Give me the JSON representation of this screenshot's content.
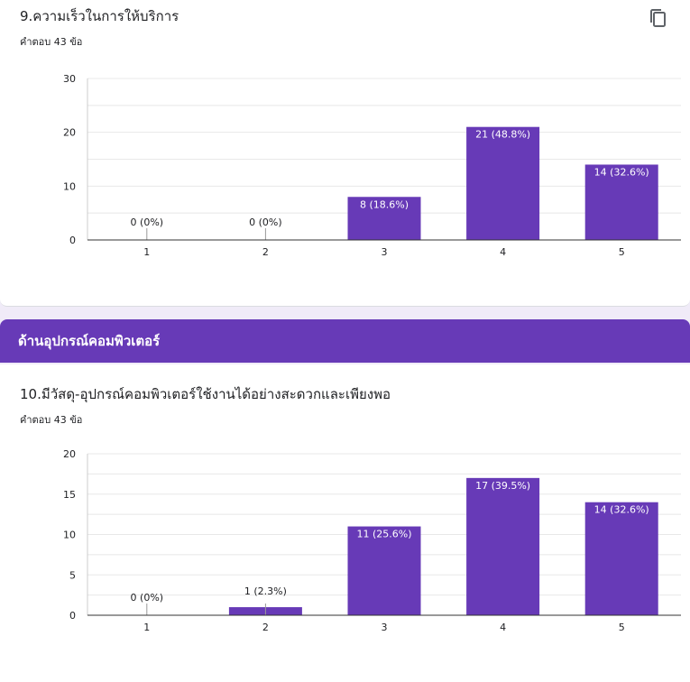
{
  "questions": [
    {
      "title": "9.ความเร็วในการให้บริการ",
      "count_label": "คำตอบ 43 ข้อ"
    },
    {
      "title": "10.มีวัสดุ-อุปกรณ์คอมพิวเตอร์ใช้งานได้อย่างสะดวกและเพียงพอ",
      "count_label": "คำตอบ 43 ข้อ"
    }
  ],
  "section": {
    "title": "ด้านอุปกรณ์คอมพิวเตอร์"
  },
  "icons": {
    "copy": "copy-icon"
  },
  "colors": {
    "bar": "#673ab7",
    "accent": "#673ab7",
    "background": "#f0ebf8"
  },
  "chart_data": [
    {
      "type": "bar",
      "categories": [
        "1",
        "2",
        "3",
        "4",
        "5"
      ],
      "values": [
        0,
        0,
        8,
        21,
        14
      ],
      "labels": [
        "0 (0%)",
        "0 (0%)",
        "8 (18.6%)",
        "21 (48.8%)",
        "14 (32.6%)"
      ],
      "yticks": [
        0,
        10,
        20,
        30
      ],
      "ylim": [
        0,
        30
      ],
      "grid": true
    },
    {
      "type": "bar",
      "categories": [
        "1",
        "2",
        "3",
        "4",
        "5"
      ],
      "values": [
        0,
        1,
        11,
        17,
        14
      ],
      "labels": [
        "0 (0%)",
        "1 (2.3%)",
        "11 (25.6%)",
        "17 (39.5%)",
        "14 (32.6%)"
      ],
      "yticks": [
        0,
        5,
        10,
        15,
        20
      ],
      "ylim": [
        0,
        20
      ],
      "grid": true
    }
  ]
}
